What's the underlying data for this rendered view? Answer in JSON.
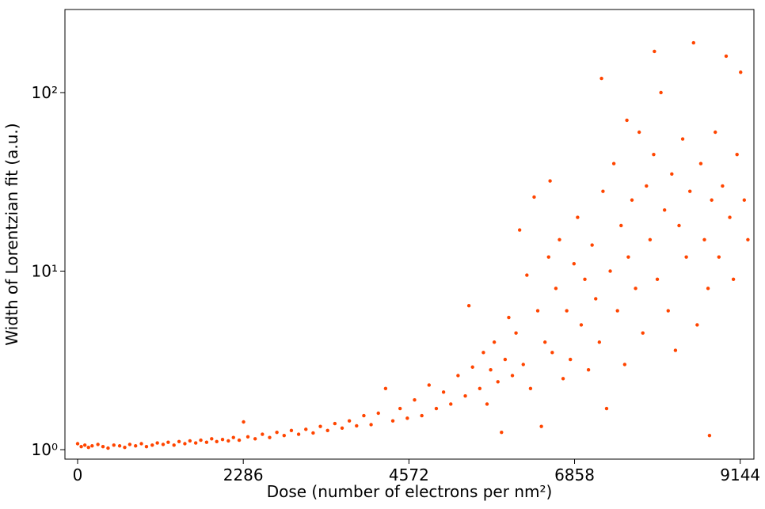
{
  "chart_data": {
    "type": "scatter",
    "xlabel": "Dose (number of electrons per nm²)",
    "ylabel": "Width of Lorentzian fit (a.u.)",
    "color": "#ff4500",
    "log_y": true,
    "xlim": [
      -175,
      9333
    ],
    "ylim": [
      0.885,
      292
    ],
    "xticks": [
      0,
      2286,
      4572,
      6858,
      9144
    ],
    "yticks": [
      {
        "value": 1,
        "label": "10⁰"
      },
      {
        "value": 10,
        "label": "10¹"
      },
      {
        "value": 100,
        "label": "10²"
      }
    ],
    "x": [
      0,
      50,
      100,
      150,
      200,
      280,
      350,
      420,
      500,
      580,
      650,
      720,
      800,
      880,
      950,
      1030,
      1100,
      1180,
      1250,
      1330,
      1400,
      1480,
      1550,
      1630,
      1700,
      1780,
      1850,
      1920,
      2000,
      2080,
      2150,
      2230,
      2290,
      2350,
      2450,
      2550,
      2650,
      2750,
      2850,
      2950,
      3050,
      3150,
      3250,
      3350,
      3450,
      3550,
      3650,
      3750,
      3850,
      3950,
      4050,
      4150,
      4250,
      4350,
      4450,
      4550,
      4650,
      4750,
      4850,
      4950,
      5050,
      5150,
      5250,
      5350,
      5400,
      5450,
      5550,
      5600,
      5650,
      5700,
      5750,
      5800,
      5850,
      5900,
      5950,
      6000,
      6050,
      6100,
      6150,
      6200,
      6250,
      6300,
      6350,
      6400,
      6450,
      6500,
      6520,
      6550,
      6600,
      6650,
      6700,
      6750,
      6800,
      6850,
      6900,
      6950,
      7000,
      7050,
      7100,
      7150,
      7200,
      7230,
      7250,
      7300,
      7350,
      7400,
      7450,
      7500,
      7550,
      7580,
      7600,
      7650,
      7700,
      7750,
      7800,
      7850,
      7900,
      7950,
      7960,
      8000,
      8050,
      8100,
      8150,
      8200,
      8250,
      8300,
      8350,
      8400,
      8450,
      8500,
      8550,
      8600,
      8650,
      8700,
      8720,
      8750,
      8800,
      8850,
      8900,
      8950,
      9000,
      9050,
      9100,
      9150,
      9200,
      9250
    ],
    "values": [
      1.08,
      1.04,
      1.06,
      1.03,
      1.05,
      1.07,
      1.04,
      1.02,
      1.06,
      1.05,
      1.03,
      1.07,
      1.05,
      1.08,
      1.04,
      1.06,
      1.09,
      1.07,
      1.1,
      1.06,
      1.11,
      1.08,
      1.12,
      1.09,
      1.13,
      1.1,
      1.15,
      1.11,
      1.14,
      1.12,
      1.17,
      1.13,
      1.43,
      1.18,
      1.15,
      1.22,
      1.17,
      1.25,
      1.2,
      1.28,
      1.22,
      1.3,
      1.24,
      1.35,
      1.28,
      1.4,
      1.32,
      1.45,
      1.36,
      1.55,
      1.38,
      1.6,
      2.2,
      1.45,
      1.7,
      1.5,
      1.9,
      1.55,
      2.3,
      1.7,
      2.1,
      1.8,
      2.6,
      2,
      6.4,
      2.9,
      2.2,
      3.5,
      1.8,
      2.8,
      4,
      2.4,
      1.25,
      3.2,
      5.5,
      2.6,
      4.5,
      17,
      3,
      9.5,
      2.2,
      26,
      6,
      1.35,
      4,
      12,
      32,
      3.5,
      8,
      15,
      2.5,
      6,
      3.2,
      11,
      20,
      5,
      9,
      2.8,
      14,
      7,
      4,
      120,
      28,
      1.7,
      10,
      40,
      6,
      18,
      3,
      70,
      12,
      25,
      8,
      60,
      4.5,
      30,
      15,
      45,
      170,
      9,
      100,
      22,
      6,
      35,
      3.6,
      18,
      55,
      12,
      28,
      190,
      5,
      40,
      15,
      8,
      1.2,
      25,
      60,
      12,
      30,
      160,
      20,
      9,
      45,
      130,
      25,
      15
    ]
  }
}
